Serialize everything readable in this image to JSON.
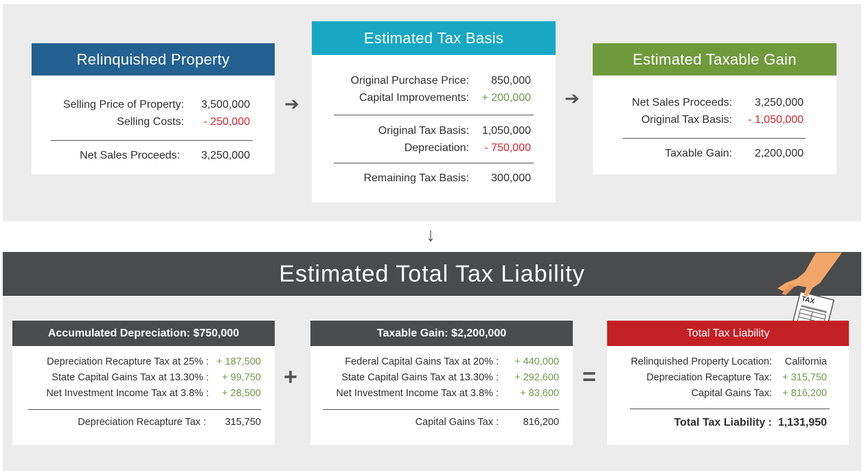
{
  "relinquished": {
    "title": "Relinquished Property",
    "rows": [
      {
        "label": "Selling Price of Property:",
        "value": "3,500,000"
      },
      {
        "label": "Selling Costs:",
        "value": "- 250,000"
      }
    ],
    "total": {
      "label": "Net Sales Proceeds:",
      "value": "3,250,000"
    }
  },
  "basis": {
    "title": "Estimated Tax Basis",
    "rows1": [
      {
        "label": "Original Purchase Price:",
        "value": "850,000"
      },
      {
        "label": "Capital Improvements:",
        "value": "+ 200,000"
      }
    ],
    "rows2": [
      {
        "label": "Original Tax Basis:",
        "value": "1,050,000"
      },
      {
        "label": "Depreciation:",
        "value": "- 750,000"
      }
    ],
    "total": {
      "label": "Remaining Tax Basis:",
      "value": "300,000"
    }
  },
  "gain": {
    "title": "Estimated Taxable Gain",
    "rows": [
      {
        "label": "Net Sales Proceeds:",
        "value": "3,250,000"
      },
      {
        "label": "Original Tax Basis:",
        "value": "- 1,050,000"
      }
    ],
    "total": {
      "label": "Taxable Gain:",
      "value": "2,200,000"
    }
  },
  "banner": {
    "title": "Estimated Total Tax Liability"
  },
  "depreciation": {
    "title": "Accumulated Depreciation:  $750,000",
    "rows": [
      {
        "label": "Depreciation Recapture Tax at 25% :",
        "value": "+ 187,500"
      },
      {
        "label": "State Capital Gains Tax at 13.30% :",
        "value": "+ 99,750"
      },
      {
        "label": "Net Investment Income Tax at 3.8% :",
        "value": "+ 28,500"
      }
    ],
    "total": {
      "label": "Depreciation Recapture Tax :",
      "value": "315,750"
    }
  },
  "capital": {
    "title": "Taxable Gain:  $2,200,000",
    "rows": [
      {
        "label": "Federal Capital Gains Tax at 20% :",
        "value": "+ 440,000"
      },
      {
        "label": "State Capital Gains Tax at 13.30% :",
        "value": "+ 292,600"
      },
      {
        "label": "Net Investment Income Tax at 3.8% :",
        "value": "+ 83,600"
      }
    ],
    "total": {
      "label": "Capital Gains Tax :",
      "value": "816,200"
    }
  },
  "liability": {
    "title": "Total Tax Liability",
    "rows": [
      {
        "label": "Relinquished Property Location:",
        "value": "California"
      },
      {
        "label": "Depreciation Recapture Tax:",
        "value": "+ 315,750"
      },
      {
        "label": "Capital Gains Tax:",
        "value": "+ 816,200"
      }
    ],
    "total": {
      "label": "Total Tax Liability :",
      "value": "1,131,950"
    }
  },
  "illustration": {
    "tax_form_label": "TAX",
    "icon": "hand-holding-tax-form-icon"
  },
  "operators": {
    "plus": "+",
    "equals": "=",
    "arrow_right": "➔",
    "arrow_down": "↓"
  },
  "colors": {
    "relinquished_header": "#236191",
    "basis_header": "#18a8c4",
    "gain_header": "#6f9a3c",
    "dark_header": "#4a4b4d",
    "liability_header": "#c32026",
    "positive": "#6f9a4b",
    "negative": "#d8262e"
  }
}
